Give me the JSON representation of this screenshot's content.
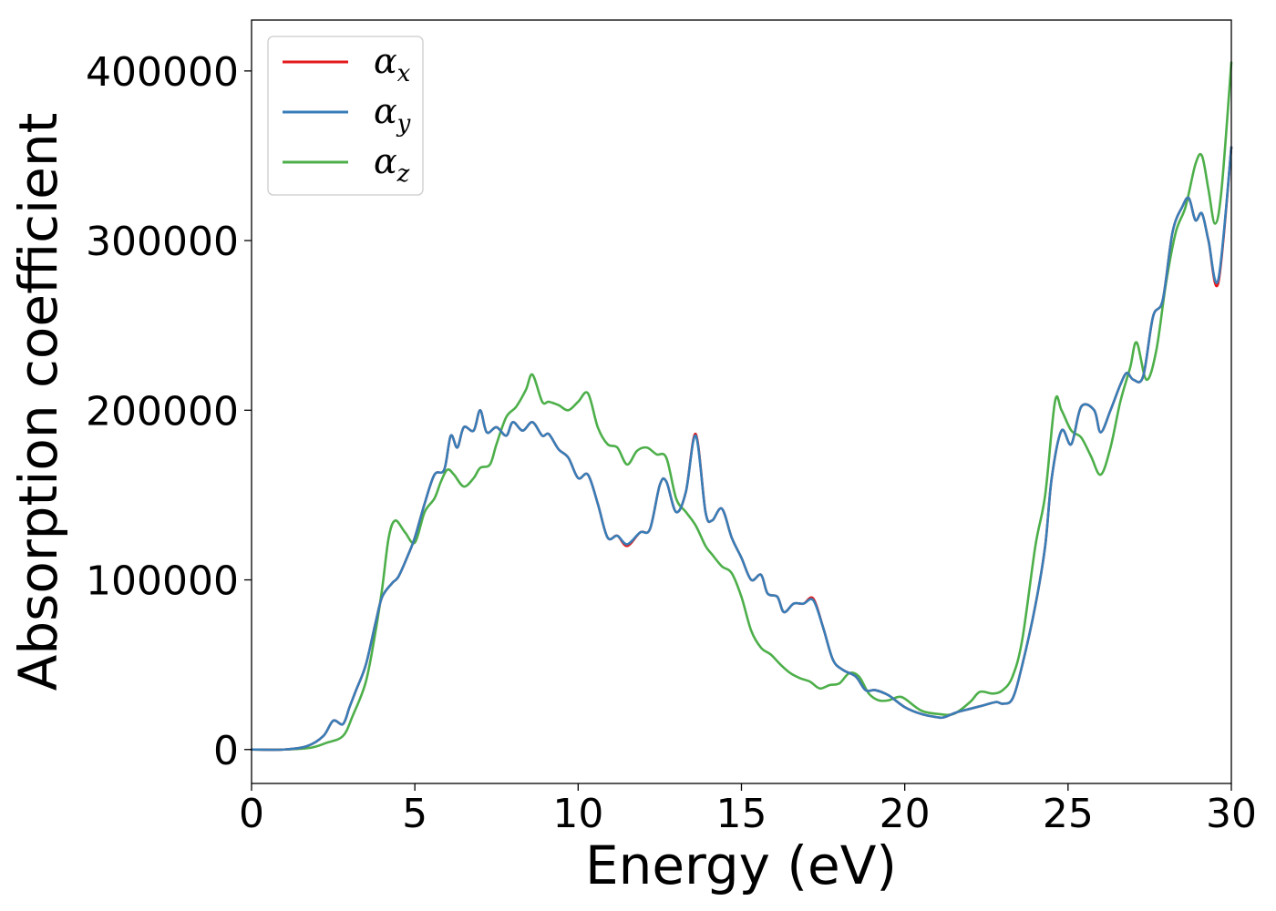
{
  "chart_data": {
    "type": "line",
    "xlabel": "Energy (eV)",
    "ylabel": "Absorption coefficient",
    "xlim": [
      0,
      30
    ],
    "ylim": [
      -20000,
      430000
    ],
    "xticks": [
      0,
      5,
      10,
      15,
      20,
      25,
      30
    ],
    "yticks": [
      0,
      100000,
      200000,
      300000,
      400000
    ],
    "xtick_labels": [
      "0",
      "5",
      "10",
      "15",
      "20",
      "25",
      "30"
    ],
    "ytick_labels": [
      "0",
      "100000",
      "200000",
      "300000",
      "400000"
    ],
    "grid": false,
    "legend_position": "top-left",
    "series": [
      {
        "name": "α_x",
        "label_main": "α",
        "label_sub": "x",
        "color": "#e41a1c",
        "x": [
          0,
          1,
          1.7,
          2.2,
          2.5,
          2.8,
          3.0,
          3.2,
          3.5,
          3.8,
          4.0,
          4.3,
          4.5,
          4.8,
          5.0,
          5.3,
          5.6,
          5.9,
          6.1,
          6.3,
          6.5,
          6.8,
          7.0,
          7.2,
          7.5,
          7.8,
          8.0,
          8.3,
          8.6,
          8.9,
          9.1,
          9.4,
          9.7,
          10.0,
          10.3,
          10.6,
          10.9,
          11.2,
          11.5,
          11.9,
          12.2,
          12.5,
          12.7,
          13.0,
          13.3,
          13.6,
          13.9,
          14.1,
          14.4,
          14.7,
          15.0,
          15.3,
          15.6,
          15.8,
          16.1,
          16.3,
          16.6,
          16.9,
          17.2,
          17.5,
          17.8,
          18.1,
          18.5,
          18.8,
          19.1,
          19.5,
          20.0,
          20.5,
          21.0,
          21.2,
          21.6,
          22.0,
          22.4,
          22.8,
          23.0,
          23.3,
          23.6,
          24.0,
          24.3,
          24.5,
          24.8,
          25.1,
          25.4,
          25.8,
          26.0,
          26.3,
          26.6,
          26.8,
          27.0,
          27.3,
          27.6,
          27.9,
          28.2,
          28.5,
          28.7,
          28.9,
          29.1,
          29.3,
          29.6,
          30.0
        ],
        "y": [
          0,
          0,
          2000,
          8000,
          17000,
          15000,
          25000,
          35000,
          50000,
          75000,
          90000,
          98000,
          102000,
          115000,
          125000,
          145000,
          162000,
          165000,
          185000,
          178000,
          190000,
          188000,
          200000,
          187000,
          190000,
          185000,
          193000,
          188000,
          193000,
          185000,
          186000,
          177000,
          172000,
          160000,
          162000,
          145000,
          125000,
          126000,
          120000,
          128000,
          130000,
          156000,
          158000,
          140000,
          152000,
          186000,
          140000,
          135000,
          142000,
          125000,
          113000,
          100000,
          103000,
          92000,
          90000,
          81000,
          86000,
          86000,
          89000,
          72000,
          53000,
          47000,
          43000,
          35000,
          35000,
          32000,
          25000,
          21000,
          19000,
          19000,
          22000,
          24000,
          26000,
          28000,
          27000,
          30000,
          50000,
          85000,
          120000,
          160000,
          188000,
          180000,
          202000,
          200000,
          187000,
          200000,
          215000,
          222000,
          218000,
          220000,
          255000,
          265000,
          305000,
          320000,
          325000,
          312000,
          316000,
          300000,
          275000,
          355000
        ]
      },
      {
        "name": "α_y",
        "label_main": "α",
        "label_sub": "y",
        "color": "#377eb8",
        "x": [
          0,
          1,
          1.7,
          2.2,
          2.5,
          2.8,
          3.0,
          3.2,
          3.5,
          3.8,
          4.0,
          4.3,
          4.5,
          4.8,
          5.0,
          5.3,
          5.6,
          5.9,
          6.1,
          6.3,
          6.5,
          6.8,
          7.0,
          7.2,
          7.5,
          7.8,
          8.0,
          8.3,
          8.6,
          8.9,
          9.1,
          9.4,
          9.7,
          10.0,
          10.3,
          10.6,
          10.9,
          11.2,
          11.5,
          11.9,
          12.2,
          12.5,
          12.7,
          13.0,
          13.3,
          13.6,
          13.9,
          14.1,
          14.4,
          14.7,
          15.0,
          15.3,
          15.6,
          15.8,
          16.1,
          16.3,
          16.6,
          16.9,
          17.2,
          17.5,
          17.8,
          18.1,
          18.5,
          18.8,
          19.1,
          19.5,
          20.0,
          20.5,
          21.0,
          21.2,
          21.6,
          22.0,
          22.4,
          22.8,
          23.0,
          23.3,
          23.6,
          24.0,
          24.3,
          24.5,
          24.8,
          25.1,
          25.4,
          25.8,
          26.0,
          26.3,
          26.6,
          26.8,
          27.0,
          27.3,
          27.6,
          27.9,
          28.2,
          28.5,
          28.7,
          28.9,
          29.1,
          29.3,
          29.6,
          30.0
        ],
        "y": [
          0,
          0,
          2000,
          8000,
          17000,
          15000,
          25000,
          35000,
          50000,
          75000,
          90000,
          98000,
          102000,
          115000,
          125000,
          145000,
          162000,
          165000,
          185000,
          178000,
          190000,
          188000,
          200000,
          187000,
          190000,
          185000,
          193000,
          188000,
          193000,
          185000,
          186000,
          177000,
          172000,
          160000,
          162000,
          145000,
          125000,
          126000,
          121000,
          128000,
          130000,
          156000,
          158000,
          140000,
          152000,
          185000,
          140000,
          135000,
          142000,
          125000,
          113000,
          100000,
          103000,
          92000,
          90000,
          81000,
          86000,
          86000,
          88000,
          72000,
          53000,
          47000,
          43000,
          35000,
          35000,
          32000,
          25000,
          21000,
          19000,
          19000,
          22000,
          24000,
          26000,
          28000,
          27000,
          30000,
          50000,
          85000,
          120000,
          160000,
          188000,
          180000,
          202000,
          200000,
          187000,
          200000,
          215000,
          222000,
          218000,
          220000,
          255000,
          265000,
          305000,
          320000,
          325000,
          312000,
          316000,
          300000,
          277000,
          355000
        ]
      },
      {
        "name": "α_z",
        "label_main": "α",
        "label_sub": "z",
        "color": "#4daf4a",
        "x": [
          0,
          1,
          1.8,
          2.3,
          2.8,
          3.1,
          3.5,
          3.8,
          4.0,
          4.2,
          4.4,
          4.7,
          5.0,
          5.3,
          5.6,
          5.8,
          6.0,
          6.2,
          6.5,
          6.8,
          7.0,
          7.3,
          7.5,
          7.8,
          8.1,
          8.4,
          8.6,
          8.9,
          9.1,
          9.4,
          9.7,
          10.0,
          10.3,
          10.6,
          10.9,
          11.2,
          11.5,
          11.8,
          12.1,
          12.4,
          12.7,
          13.0,
          13.3,
          13.6,
          13.9,
          14.1,
          14.4,
          14.7,
          15.0,
          15.3,
          15.6,
          15.9,
          16.2,
          16.5,
          16.8,
          17.1,
          17.4,
          17.7,
          18.0,
          18.3,
          18.6,
          18.9,
          19.2,
          19.5,
          19.8,
          20.0,
          20.5,
          21.0,
          21.5,
          22.0,
          22.3,
          22.7,
          23.0,
          23.3,
          23.6,
          24.0,
          24.3,
          24.6,
          24.8,
          25.1,
          25.4,
          25.7,
          26.0,
          26.3,
          26.6,
          26.9,
          27.1,
          27.4,
          27.7,
          28.0,
          28.3,
          28.6,
          28.9,
          29.1,
          29.3,
          29.5,
          29.7,
          30.0
        ],
        "y": [
          0,
          0,
          1000,
          4000,
          8000,
          20000,
          40000,
          70000,
          95000,
          125000,
          135000,
          128000,
          122000,
          140000,
          148000,
          158000,
          165000,
          162000,
          155000,
          160000,
          166000,
          168000,
          180000,
          196000,
          202000,
          212000,
          221000,
          205000,
          205000,
          203000,
          200000,
          205000,
          210000,
          190000,
          180000,
          178000,
          168000,
          176000,
          178000,
          174000,
          172000,
          148000,
          140000,
          132000,
          120000,
          115000,
          108000,
          104000,
          90000,
          70000,
          60000,
          56000,
          50000,
          45000,
          42000,
          40000,
          36000,
          38000,
          39000,
          45000,
          43000,
          33000,
          29000,
          29000,
          31000,
          30000,
          23000,
          21000,
          21000,
          28000,
          34000,
          33000,
          35000,
          43000,
          65000,
          120000,
          150000,
          205000,
          200000,
          188000,
          184000,
          173000,
          162000,
          178000,
          205000,
          225000,
          240000,
          218000,
          235000,
          275000,
          305000,
          320000,
          345000,
          350000,
          330000,
          310000,
          330000,
          405000
        ]
      }
    ]
  }
}
